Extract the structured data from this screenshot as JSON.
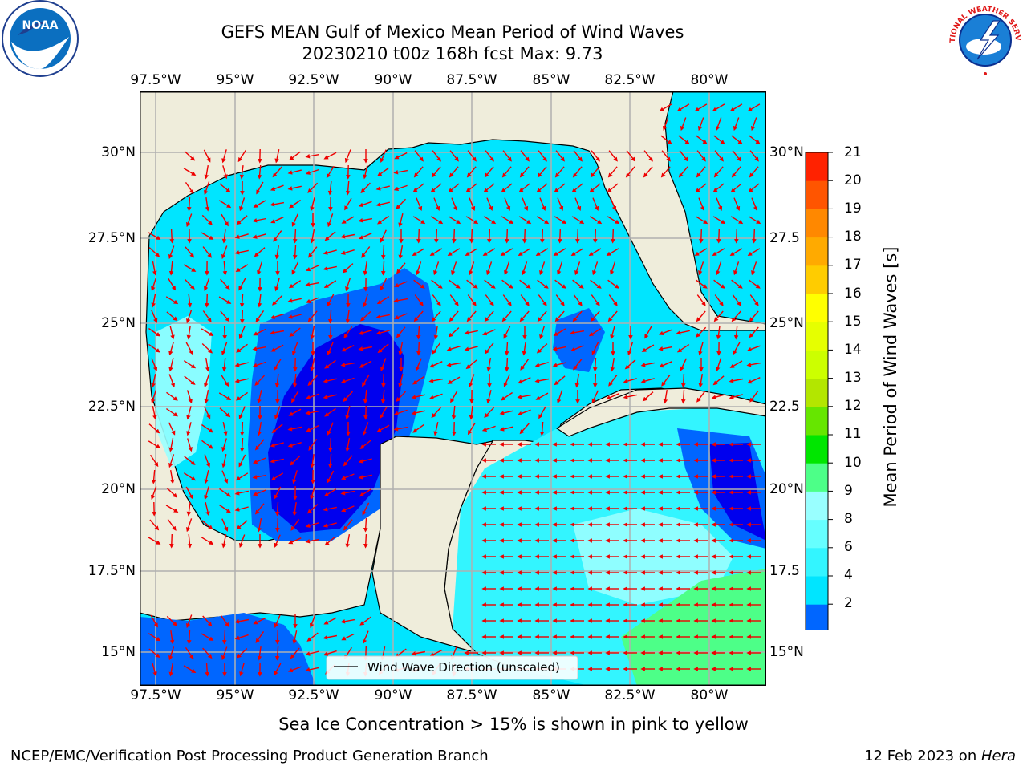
{
  "title": {
    "line1": "GEFS MEAN Gulf of Mexico Mean Period of Wind Waves",
    "line2": "20230210 t00z 168h fcst   Max: 9.73"
  },
  "axes": {
    "lon_ticks": [
      "97.5°W",
      "95°W",
      "92.5°W",
      "90°W",
      "87.5°W",
      "85°W",
      "82.5°W",
      "80°W"
    ],
    "lat_ticks_left": [
      "30°N",
      "27.5°N",
      "25°N",
      "22.5°N",
      "20°N",
      "17.5°N",
      "15°N"
    ],
    "lat_ticks_right": [
      "30°N",
      "27.5",
      "25°N",
      "22.5",
      "20°N",
      "17.5",
      "15°N"
    ]
  },
  "legend": {
    "label": "Wind Wave Direction (unscaled)"
  },
  "colorbar": {
    "label": "Mean Period of Wind Waves [s]",
    "ticks": [
      "2",
      "4",
      "6",
      "8",
      "9",
      "10",
      "11",
      "12",
      "13",
      "14",
      "15",
      "16",
      "17",
      "18",
      "19",
      "20",
      "21"
    ],
    "colors": [
      "#0066ff",
      "#00e5ff",
      "#33f5ff",
      "#66ffff",
      "#99ffff",
      "#4dff88",
      "#00e600",
      "#66e600",
      "#b3e600",
      "#ccff00",
      "#e6ff00",
      "#ffff00",
      "#ffcc00",
      "#ffaa00",
      "#ff8800",
      "#ff5500",
      "#ff2200",
      "#ff0000"
    ],
    "under_color": "#0000ee"
  },
  "map_colors": {
    "land": "#efeddb",
    "deep": "#0000ee",
    "blue": "#0066ff",
    "cyan": "#00e5ff",
    "cyan_light": "#33f5ff",
    "pale": "#99ffff",
    "green": "#4dff88",
    "arrow": "#ee0000"
  },
  "subtitle": "Sea Ice Concentration > 15% is shown in pink to yellow",
  "footer": {
    "left": "NCEP/EMC/Verification Post Processing Product Generation Branch",
    "right_prefix": "12 Feb 2023 on ",
    "right_host": "Hera"
  },
  "logos": {
    "noaa": "NOAA",
    "nws": "NATIONAL WEATHER SERVICE"
  }
}
